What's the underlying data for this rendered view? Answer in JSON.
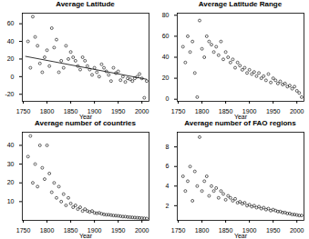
{
  "chart_data": [
    {
      "type": "scatter",
      "title": "Average Latitude",
      "x_label": "Year",
      "color": "#000000",
      "marker": "circle",
      "x": [
        1760,
        1765,
        1770,
        1775,
        1780,
        1785,
        1790,
        1795,
        1800,
        1805,
        1810,
        1815,
        1820,
        1825,
        1830,
        1835,
        1840,
        1845,
        1850,
        1855,
        1860,
        1865,
        1870,
        1875,
        1880,
        1885,
        1890,
        1895,
        1900,
        1905,
        1910,
        1915,
        1920,
        1925,
        1930,
        1935,
        1940,
        1945,
        1950,
        1955,
        1960,
        1965,
        1970,
        1975,
        1980,
        1985,
        1990,
        1995,
        2000,
        2005,
        2010
      ],
      "values": [
        40,
        10,
        68,
        45,
        35,
        15,
        5,
        22,
        30,
        12,
        55,
        33,
        42,
        5,
        18,
        10,
        35,
        20,
        28,
        22,
        18,
        12,
        8,
        22,
        18,
        12,
        8,
        2,
        10,
        5,
        0,
        14,
        10,
        6,
        2,
        -5,
        10,
        4,
        6,
        -4,
        0,
        -6,
        -2,
        -3,
        -5,
        -2,
        0,
        3,
        -2,
        -24,
        -5
      ],
      "fit": {
        "x": [
          1755,
          2010
        ],
        "values": [
          23,
          -3
        ]
      },
      "xlim": [
        1748,
        2015
      ],
      "xticks": [
        1750,
        1800,
        1850,
        1900,
        1950,
        2000
      ],
      "ylim": [
        -28,
        72
      ],
      "yticks": [
        -20,
        0,
        20,
        40,
        60
      ]
    },
    {
      "type": "scatter",
      "title": "Average Latitude Range",
      "x_label": "Year",
      "color": "#000000",
      "marker": "circle",
      "x": [
        1760,
        1765,
        1770,
        1775,
        1780,
        1785,
        1790,
        1795,
        1800,
        1805,
        1810,
        1815,
        1820,
        1825,
        1830,
        1835,
        1840,
        1845,
        1850,
        1855,
        1860,
        1865,
        1870,
        1875,
        1880,
        1885,
        1890,
        1895,
        1900,
        1905,
        1910,
        1915,
        1920,
        1925,
        1930,
        1935,
        1940,
        1945,
        1950,
        1955,
        1960,
        1965,
        1970,
        1975,
        1980,
        1985,
        1990,
        1995,
        2000,
        2005,
        2010
      ],
      "values": [
        50,
        35,
        60,
        45,
        55,
        25,
        2,
        75,
        48,
        40,
        60,
        55,
        52,
        45,
        50,
        42,
        55,
        38,
        45,
        40,
        35,
        38,
        30,
        35,
        32,
        28,
        30,
        25,
        28,
        24,
        26,
        22,
        25,
        20,
        22,
        18,
        24,
        16,
        20,
        18,
        15,
        17,
        14,
        15,
        12,
        13,
        10,
        12,
        8,
        6,
        2
      ],
      "xlim": [
        1748,
        2015
      ],
      "xticks": [
        1750,
        1800,
        1850,
        1900,
        1950,
        2000
      ],
      "ylim": [
        -2,
        82
      ],
      "yticks": [
        0,
        20,
        40,
        60,
        80
      ]
    },
    {
      "type": "scatter",
      "title": "Average number of countries",
      "x_label": "Year",
      "color": "#000000",
      "marker": "circle",
      "x": [
        1760,
        1765,
        1770,
        1775,
        1780,
        1785,
        1790,
        1795,
        1800,
        1805,
        1810,
        1815,
        1820,
        1825,
        1830,
        1835,
        1840,
        1845,
        1850,
        1855,
        1860,
        1865,
        1870,
        1875,
        1880,
        1885,
        1890,
        1895,
        1900,
        1905,
        1910,
        1915,
        1920,
        1925,
        1930,
        1935,
        1940,
        1945,
        1950,
        1955,
        1960,
        1965,
        1970,
        1975,
        1980,
        1985,
        1990,
        1995,
        2000,
        2005,
        2010
      ],
      "values": [
        34,
        45,
        20,
        30,
        18,
        40,
        28,
        22,
        40,
        25,
        15,
        20,
        12,
        18,
        10,
        14,
        8,
        12,
        9,
        7,
        8,
        6,
        7,
        5,
        6,
        5,
        4.5,
        5,
        4,
        3.8,
        4,
        3.5,
        3.2,
        3,
        3,
        2.8,
        2.6,
        2.5,
        2.4,
        2.2,
        2,
        2,
        1.8,
        1.7,
        1.6,
        1.5,
        1.4,
        1.3,
        1.2,
        1.1,
        1
      ],
      "xlim": [
        1748,
        2015
      ],
      "xticks": [
        1750,
        1800,
        1850,
        1900,
        1950,
        2000
      ],
      "ylim": [
        0,
        47
      ],
      "yticks": [
        10,
        20,
        30,
        40
      ]
    },
    {
      "type": "scatter",
      "title": "Average number of FAO regions",
      "x_label": "Year",
      "color": "#000000",
      "marker": "circle",
      "x": [
        1760,
        1765,
        1770,
        1775,
        1780,
        1785,
        1790,
        1795,
        1800,
        1805,
        1810,
        1815,
        1820,
        1825,
        1830,
        1835,
        1840,
        1845,
        1850,
        1855,
        1860,
        1865,
        1870,
        1875,
        1880,
        1885,
        1890,
        1895,
        1900,
        1905,
        1910,
        1915,
        1920,
        1925,
        1930,
        1935,
        1940,
        1945,
        1950,
        1955,
        1960,
        1965,
        1970,
        1975,
        1980,
        1985,
        1990,
        1995,
        2000,
        2005,
        2010
      ],
      "values": [
        5,
        3.5,
        4.5,
        6,
        2.5,
        5.5,
        4,
        9,
        3.5,
        4.5,
        5,
        3,
        4,
        3.5,
        3.8,
        2.8,
        3.5,
        3.2,
        2.6,
        3,
        2.8,
        2.5,
        2.7,
        2.3,
        2.4,
        2.2,
        2.3,
        2,
        2.1,
        1.9,
        2,
        1.8,
        1.9,
        1.7,
        1.8,
        1.6,
        1.7,
        1.5,
        1.6,
        1.5,
        1.4,
        1.4,
        1.3,
        1.3,
        1.2,
        1.2,
        1.1,
        1.1,
        1.05,
        1,
        1
      ],
      "xlim": [
        1748,
        2015
      ],
      "xticks": [
        1750,
        1800,
        1850,
        1900,
        1950,
        2000
      ],
      "ylim": [
        0.5,
        9.5
      ],
      "yticks": [
        2,
        4,
        6,
        8
      ]
    }
  ]
}
